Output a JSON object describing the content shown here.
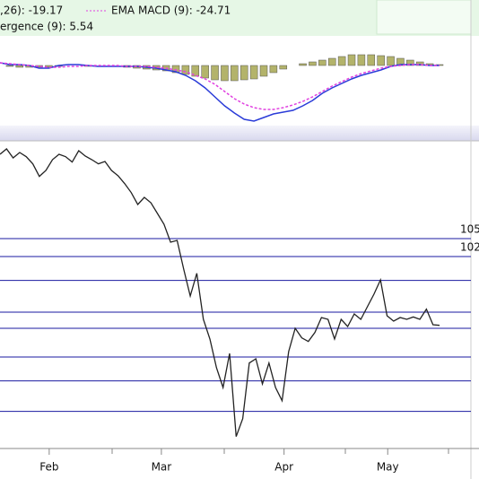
{
  "chart_data": [
    {
      "type": "macd",
      "legend": [
        ",26): -19.17",
        "EMA MACD (9): -24.71",
        "ergence (9): 5.54"
      ],
      "ylim": [
        -33.5,
        16.5
      ],
      "series": [
        {
          "kind": "histogram",
          "color": "#b3b36b",
          "values": [
            0,
            -0.5,
            -1,
            -1,
            -1,
            -1,
            -0.5,
            0,
            0,
            -0.5,
            0,
            0,
            0,
            -1,
            -1.5,
            -2,
            -2.5,
            -3,
            -4,
            -5,
            -6,
            -7,
            -8,
            -8.5,
            -8.5,
            -8,
            -7.5,
            -6,
            -4,
            -2,
            0,
            1,
            2,
            3,
            4,
            5,
            6,
            6,
            6,
            5.5,
            5,
            4,
            3,
            2,
            1,
            0.5
          ]
        },
        {
          "kind": "line",
          "color": "#2a3bd8",
          "values": [
            1.5,
            0.5,
            0.5,
            0,
            -1.5,
            -1.5,
            0,
            0.5,
            0.5,
            0,
            -0.5,
            -0.5,
            -0.5,
            -0.5,
            -0.5,
            -1,
            -1.5,
            -2.5,
            -3.5,
            -5.5,
            -8.5,
            -12.5,
            -17.5,
            -22.5,
            -26.5,
            -30,
            -31,
            -29,
            -27,
            -26,
            -25,
            -22.5,
            -19.5,
            -15.5,
            -12.5,
            -10,
            -7.5,
            -5.5,
            -4,
            -2.5,
            -0.5,
            0.5,
            0.5,
            0.5,
            0,
            0
          ]
        },
        {
          "kind": "dashed",
          "color": "#e040e0",
          "values": [
            1.5,
            1,
            0.5,
            0,
            -0.5,
            -1,
            -1,
            -0.5,
            -0.5,
            0,
            0,
            0,
            0,
            -0.5,
            -0.5,
            -0.5,
            -1,
            -1.5,
            -2.5,
            -3.5,
            -5.5,
            -7.5,
            -10.5,
            -14.5,
            -18.5,
            -21.5,
            -23.5,
            -24.5,
            -24.5,
            -23.5,
            -22,
            -20,
            -17.5,
            -14.5,
            -11.5,
            -9,
            -6.5,
            -4.5,
            -3,
            -1.5,
            -0.5,
            0,
            0.5,
            0.5,
            0,
            0
          ]
        }
      ]
    },
    {
      "type": "line",
      "color": "#222222",
      "level_color": "#1a1aa0",
      "ylim": [
        69.9,
        121.2
      ],
      "labeled_levels": [
        105,
        102
      ],
      "levels": [
        98.0,
        92.7,
        90.0,
        85.2,
        81.2,
        76.1
      ],
      "xticks": [
        {
          "value": 7.5,
          "label": "Feb"
        },
        {
          "value": 24.6,
          "label": "Mar"
        },
        {
          "value": 43.3,
          "label": "Apr"
        },
        {
          "value": 59.1,
          "label": "May"
        }
      ],
      "values": [
        119.1,
        120.0,
        118.5,
        119.4,
        118.7,
        117.5,
        115.4,
        116.4,
        118.2,
        119.1,
        118.7,
        117.8,
        119.7,
        118.8,
        118.2,
        117.5,
        117.9,
        116.4,
        115.5,
        114.2,
        112.7,
        110.7,
        111.9,
        111.0,
        109.2,
        107.4,
        104.4,
        104.7,
        99.9,
        95.4,
        99.2,
        91.5,
        88.2,
        83.4,
        80.1,
        85.8,
        71.9,
        74.9,
        84.2,
        84.9,
        80.7,
        84.2,
        80.1,
        77.9,
        86.1,
        90.0,
        88.4,
        87.8,
        89.3,
        91.8,
        91.5,
        88.2,
        91.5,
        90.3,
        92.4,
        91.5,
        93.6,
        95.7,
        98.1,
        92.1,
        91.2,
        91.8,
        91.5,
        91.9,
        91.5,
        93.2,
        90.6,
        90.5
      ]
    }
  ]
}
